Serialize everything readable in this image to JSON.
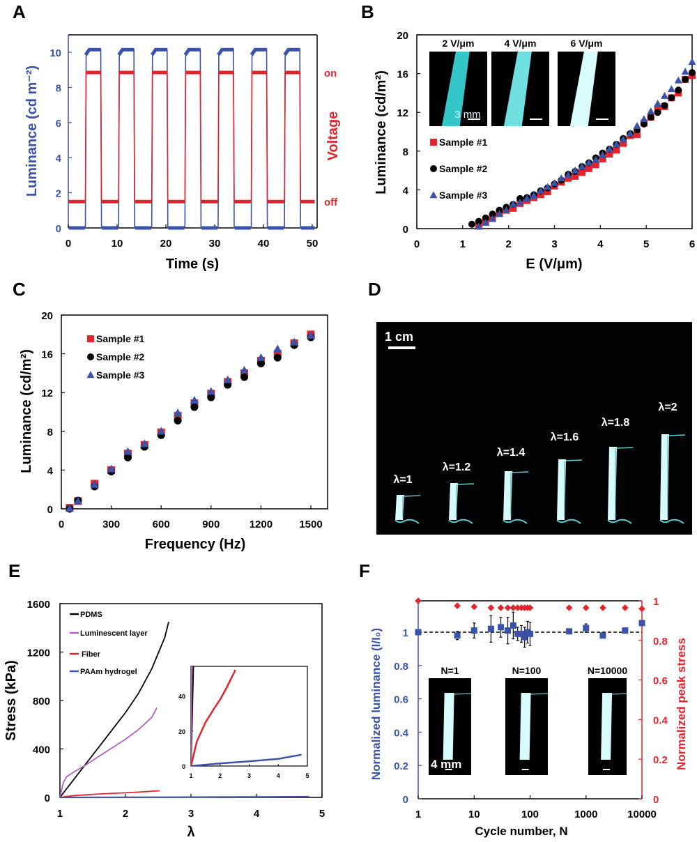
{
  "colors": {
    "blue": "#3a52a8",
    "red": "#e2242c",
    "black": "#000000",
    "purple": "#b060b8",
    "glow": "#7fe8ef"
  },
  "panels": {
    "A": {
      "letter": "A"
    },
    "B": {
      "letter": "B",
      "insets": [
        {
          "label": "2 V/μm",
          "scale_bar": "3 mm"
        },
        {
          "label": "4 V/μm",
          "scale_bar": ""
        },
        {
          "label": "6 V/μm",
          "scale_bar": ""
        }
      ]
    },
    "C": {
      "letter": "C"
    },
    "D": {
      "letter": "D",
      "scale_bar": "1 cm",
      "stretch_labels": [
        "λ=1",
        "λ=1.2",
        "λ=1.4",
        "λ=1.6",
        "λ=1.8",
        "λ=2"
      ]
    },
    "E": {
      "letter": "E"
    },
    "F": {
      "letter": "F",
      "insets": [
        {
          "label": "N=1",
          "scale_bar": "4 mm"
        },
        {
          "label": "N=100",
          "scale_bar": ""
        },
        {
          "label": "N=10000",
          "scale_bar": ""
        }
      ]
    }
  },
  "chart_data": [
    {
      "id": "A",
      "type": "line",
      "title": "",
      "xlabel": "Time (s)",
      "ylabel": "Luminance (cd m⁻²)",
      "ylabel_right": "Voltage",
      "right_tick_labels": [
        "on",
        "off"
      ],
      "xlim": [
        0,
        51
      ],
      "ylim": [
        0,
        11
      ],
      "xticks": [
        0,
        10,
        20,
        30,
        40,
        50
      ],
      "yticks": [
        0,
        2,
        4,
        6,
        8,
        10
      ],
      "pulse_on_intervals": [
        [
          3.5,
          6.8
        ],
        [
          10.3,
          13.6
        ],
        [
          17.1,
          20.4
        ],
        [
          23.9,
          27.2
        ],
        [
          30.7,
          34.0
        ],
        [
          37.5,
          40.8
        ],
        [
          44.3,
          47.6
        ]
      ],
      "series": [
        {
          "name": "Luminance",
          "axis": "left",
          "on_value": 10.15,
          "off_value": 0
        },
        {
          "name": "Voltage",
          "axis": "right",
          "on_value": 8.85,
          "off_value": 1.5
        }
      ]
    },
    {
      "id": "B",
      "type": "scatter",
      "xlabel": "E (V/μm)",
      "ylabel": "Luminance (cd/m²)",
      "xlim": [
        0,
        6
      ],
      "ylim": [
        0,
        20
      ],
      "xticks": [
        0,
        1,
        2,
        3,
        4,
        5,
        6
      ],
      "yticks": [
        0,
        4,
        8,
        12,
        16,
        20
      ],
      "legend": [
        "Sample #1",
        "Sample #2",
        "Sample #3"
      ],
      "legend_position": "left-middle",
      "x": [
        1.2,
        1.35,
        1.5,
        1.65,
        1.8,
        1.95,
        2.1,
        2.25,
        2.4,
        2.55,
        2.7,
        2.85,
        3.0,
        3.15,
        3.3,
        3.45,
        3.6,
        3.75,
        3.9,
        4.05,
        4.2,
        4.35,
        4.5,
        4.65,
        4.8,
        4.95,
        5.1,
        5.25,
        5.4,
        5.55,
        5.7,
        5.85,
        6.0
      ],
      "series": [
        {
          "name": "Sample #1",
          "marker": "square",
          "values": [
            null,
            0.3,
            0.8,
            1.2,
            1.6,
            1.9,
            2.1,
            2.6,
            2.9,
            3.2,
            3.5,
            3.8,
            4.4,
            4.8,
            5.2,
            5.4,
            5.8,
            6.2,
            6.6,
            7.2,
            7.7,
            8.1,
            8.8,
            9.6,
            9.7,
            10.9,
            11.5,
            12.4,
            12.6,
            13.5,
            14.0,
            15.4,
            15.8
          ]
        },
        {
          "name": "Sample #2",
          "marker": "circle",
          "values": [
            0.45,
            0.75,
            1.1,
            1.5,
            1.9,
            2.2,
            2.5,
            3.1,
            3.2,
            3.5,
            3.9,
            4.2,
            4.6,
            5.0,
            5.6,
            5.9,
            6.4,
            6.8,
            7.3,
            7.8,
            8.2,
            8.7,
            9.3,
            9.8,
            10.2,
            10.8,
            11.5,
            12.0,
            12.7,
            13.5,
            14.3,
            15.4,
            16.1
          ]
        },
        {
          "name": "Sample #3",
          "marker": "triangle",
          "values": [
            null,
            0.2,
            0.6,
            1.0,
            1.5,
            1.9,
            2.5,
            2.7,
            3.1,
            3.4,
            3.9,
            4.3,
            4.7,
            5.2,
            5.5,
            6.0,
            6.4,
            6.8,
            7.1,
            7.6,
            8.2,
            8.7,
            9.2,
            9.8,
            10.6,
            11.3,
            12.1,
            12.9,
            13.7,
            14.4,
            15.3,
            16.2,
            17.2
          ]
        }
      ]
    },
    {
      "id": "C",
      "type": "scatter",
      "xlabel": "Frequency (Hz)",
      "ylabel": "Luminance (cd/m²)",
      "xlim": [
        0,
        1600
      ],
      "ylim": [
        0,
        20
      ],
      "xticks": [
        0,
        300,
        600,
        900,
        1200,
        1500
      ],
      "yticks": [
        0,
        4,
        8,
        12,
        16,
        20
      ],
      "legend": [
        "Sample #1",
        "Sample #2",
        "Sample #3"
      ],
      "legend_position": "top-left",
      "x": [
        50,
        100,
        200,
        300,
        400,
        500,
        600,
        700,
        800,
        900,
        1000,
        1100,
        1200,
        1300,
        1400,
        1500
      ],
      "series": [
        {
          "name": "Sample #1",
          "marker": "square",
          "values": [
            0.1,
            0.8,
            2.6,
            4.0,
            5.7,
            6.6,
            7.9,
            9.6,
            10.9,
            11.9,
            13.1,
            14.0,
            15.3,
            16.0,
            17.1,
            18.0
          ]
        },
        {
          "name": "Sample #2",
          "marker": "circle",
          "values": [
            0.0,
            0.85,
            2.3,
            3.85,
            5.3,
            6.4,
            7.6,
            9.1,
            10.5,
            11.5,
            12.8,
            13.6,
            15.0,
            15.6,
            16.9,
            17.7
          ]
        },
        {
          "name": "Sample #3",
          "marker": "triangle",
          "values": [
            0.05,
            0.8,
            2.5,
            4.1,
            5.9,
            6.7,
            8.0,
            9.9,
            11.2,
            12.1,
            13.3,
            14.3,
            15.6,
            16.5,
            17.2,
            17.9
          ]
        }
      ]
    },
    {
      "id": "E",
      "type": "line",
      "xlabel": "λ",
      "ylabel": "Stress (kPa)",
      "xlim": [
        1,
        5
      ],
      "ylim": [
        0,
        1600
      ],
      "xticks": [
        1,
        2,
        3,
        4,
        5
      ],
      "yticks": [
        0,
        400,
        800,
        1200,
        1600
      ],
      "legend_position": "top-left",
      "series": [
        {
          "name": "PDMS",
          "color": "#000000",
          "x": [
            1.0,
            1.1,
            1.2,
            1.4,
            1.6,
            1.8,
            2.0,
            2.2,
            2.4,
            2.6,
            2.66
          ],
          "y": [
            0,
            70,
            140,
            280,
            420,
            560,
            700,
            860,
            1060,
            1320,
            1450
          ]
        },
        {
          "name": "Luminescent layer",
          "color": "#b060b8",
          "x": [
            1.0,
            1.05,
            1.1,
            1.2,
            1.4,
            1.6,
            1.8,
            2.0,
            2.2,
            2.4,
            2.48
          ],
          "y": [
            0,
            120,
            170,
            205,
            270,
            340,
            410,
            480,
            560,
            660,
            740
          ]
        },
        {
          "name": "Fiber",
          "color": "#e2242c",
          "x": [
            1.0,
            1.2,
            1.5,
            1.8,
            2.0,
            2.2,
            2.5,
            2.52
          ],
          "y": [
            0,
            14,
            25,
            33,
            38,
            44,
            54,
            55
          ]
        },
        {
          "name": "PAAm hydrogel",
          "color": "#3a52a8",
          "x": [
            1.0,
            2.0,
            3.0,
            4.0,
            4.8
          ],
          "y": [
            0,
            1.5,
            2.7,
            4.1,
            6.5
          ]
        }
      ],
      "inset": {
        "xlim": [
          1,
          5
        ],
        "ylim": [
          0,
          57
        ],
        "xticks": [
          1,
          2,
          3,
          4,
          5
        ],
        "yticks": [
          0,
          20,
          40
        ]
      }
    },
    {
      "id": "F",
      "type": "scatter",
      "xlabel": "Cycle number, N",
      "ylabel": "Normalized luminance (I/I₀)",
      "ylabel_right": "Normalized peak stress",
      "xscale": "log",
      "xlim": [
        1,
        10000
      ],
      "ylim": [
        0,
        1.19
      ],
      "ylim_right": [
        0,
        1
      ],
      "xticks": [
        "1",
        "10",
        "100",
        "1000",
        "10000"
      ],
      "yticks": [
        "0",
        "0.2",
        "0.4",
        "0.6",
        "0.8",
        "1"
      ],
      "yticks_right": [
        "0",
        "0.2",
        "0.4",
        "0.6",
        "0.8",
        "1"
      ],
      "reference_line": 1.0,
      "series": [
        {
          "name": "Normalized luminance",
          "axis": "left",
          "marker": "square",
          "x": [
            1,
            5,
            10,
            20,
            30,
            40,
            50,
            60,
            70,
            80,
            90,
            100,
            500,
            1000,
            2000,
            5000,
            10000
          ],
          "values": [
            1.0,
            0.98,
            1.01,
            1.02,
            1.03,
            1.01,
            1.04,
            0.99,
            0.99,
            0.97,
            1.0,
            0.99,
            1.005,
            1.025,
            0.98,
            1.01,
            1.055
          ],
          "errors": [
            0,
            0.025,
            0.045,
            0.08,
            0.06,
            0.08,
            0.08,
            0.04,
            0.05,
            0.06,
            0.065,
            0.07,
            0,
            0.025,
            0.015,
            0,
            0
          ]
        },
        {
          "name": "Normalized peak stress",
          "axis": "right",
          "marker": "diamond",
          "x": [
            1,
            5,
            10,
            20,
            30,
            40,
            50,
            60,
            70,
            80,
            90,
            100,
            500,
            1000,
            2000,
            5000,
            10000
          ],
          "values": [
            1.0,
            0.975,
            0.97,
            0.965,
            0.965,
            0.965,
            0.965,
            0.965,
            0.965,
            0.965,
            0.965,
            0.965,
            0.965,
            0.965,
            0.965,
            0.965,
            0.96
          ]
        }
      ]
    }
  ]
}
